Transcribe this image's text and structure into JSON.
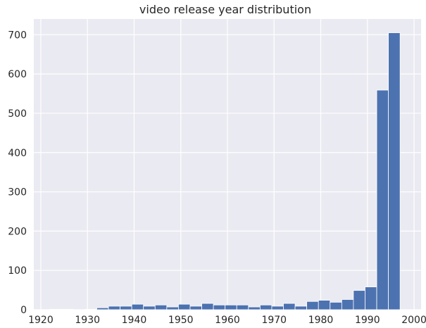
{
  "chart_data": {
    "type": "bar",
    "title": "video release year distribution",
    "xlabel": "",
    "ylabel": "",
    "xlim": [
      1918.5,
      2001.5
    ],
    "ylim": [
      0,
      740
    ],
    "x_ticks": [
      1920,
      1930,
      1940,
      1950,
      1960,
      1970,
      1980,
      1990,
      2000
    ],
    "y_ticks": [
      0,
      100,
      200,
      300,
      400,
      500,
      600,
      700
    ],
    "grid": true,
    "bar_color": "#4c72b0",
    "background_color": "#eaeaf2",
    "bins": [
      {
        "x0": 1922.0,
        "x1": 1924.5,
        "value": 1
      },
      {
        "x0": 1924.5,
        "x1": 1927.0,
        "value": 1
      },
      {
        "x0": 1927.0,
        "x1": 1929.5,
        "value": 0
      },
      {
        "x0": 1929.5,
        "x1": 1932.0,
        "value": 1
      },
      {
        "x0": 1932.0,
        "x1": 1934.5,
        "value": 5
      },
      {
        "x0": 1934.5,
        "x1": 1937.0,
        "value": 9
      },
      {
        "x0": 1937.0,
        "x1": 1939.5,
        "value": 9
      },
      {
        "x0": 1939.5,
        "x1": 1942.0,
        "value": 14
      },
      {
        "x0": 1942.0,
        "x1": 1944.5,
        "value": 9
      },
      {
        "x0": 1944.5,
        "x1": 1947.0,
        "value": 12
      },
      {
        "x0": 1947.0,
        "x1": 1949.5,
        "value": 7
      },
      {
        "x0": 1949.5,
        "x1": 1952.0,
        "value": 14
      },
      {
        "x0": 1952.0,
        "x1": 1954.5,
        "value": 9
      },
      {
        "x0": 1954.5,
        "x1": 1957.0,
        "value": 16
      },
      {
        "x0": 1957.0,
        "x1": 1959.5,
        "value": 12
      },
      {
        "x0": 1959.5,
        "x1": 1962.0,
        "value": 12
      },
      {
        "x0": 1962.0,
        "x1": 1964.5,
        "value": 12
      },
      {
        "x0": 1964.5,
        "x1": 1967.0,
        "value": 7
      },
      {
        "x0": 1967.0,
        "x1": 1969.5,
        "value": 12
      },
      {
        "x0": 1969.5,
        "x1": 1972.0,
        "value": 9
      },
      {
        "x0": 1972.0,
        "x1": 1974.5,
        "value": 16
      },
      {
        "x0": 1974.5,
        "x1": 1977.0,
        "value": 9
      },
      {
        "x0": 1977.0,
        "x1": 1979.5,
        "value": 21
      },
      {
        "x0": 1979.5,
        "x1": 1982.0,
        "value": 24
      },
      {
        "x0": 1982.0,
        "x1": 1984.5,
        "value": 19
      },
      {
        "x0": 1984.5,
        "x1": 1987.0,
        "value": 26
      },
      {
        "x0": 1987.0,
        "x1": 1989.5,
        "value": 49
      },
      {
        "x0": 1989.5,
        "x1": 1992.0,
        "value": 58
      },
      {
        "x0": 1992.0,
        "x1": 1994.5,
        "value": 559
      },
      {
        "x0": 1994.5,
        "x1": 1997.0,
        "value": 705
      }
    ]
  }
}
